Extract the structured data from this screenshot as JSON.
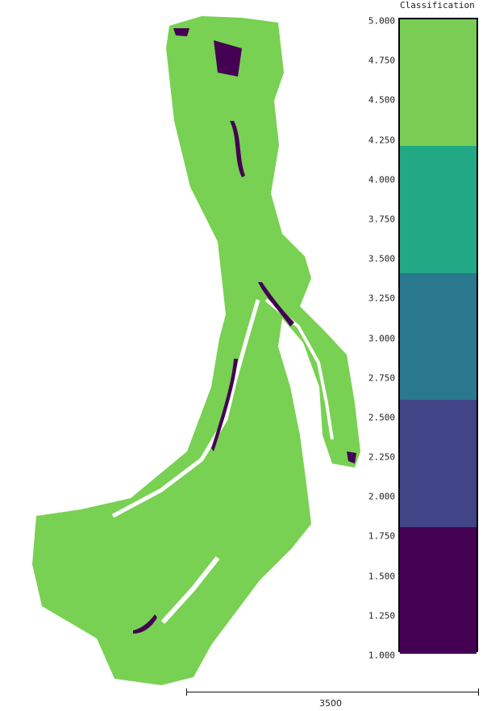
{
  "colorbar": {
    "title": "Classification",
    "range": [
      1.0,
      5.0
    ],
    "ticks": [
      "5.000",
      "4.750",
      "4.500",
      "4.250",
      "4.000",
      "3.750",
      "3.500",
      "3.250",
      "3.000",
      "2.750",
      "2.500",
      "2.250",
      "2.000",
      "1.750",
      "1.500",
      "1.250",
      "1.000"
    ],
    "classes": [
      {
        "from": 4.2,
        "to": 5.0,
        "color": "#7ace55"
      },
      {
        "from": 3.4,
        "to": 4.2,
        "color": "#22a884"
      },
      {
        "from": 2.6,
        "to": 3.4,
        "color": "#2a788e"
      },
      {
        "from": 1.8,
        "to": 2.6,
        "color": "#414487"
      },
      {
        "from": 1.0,
        "to": 1.8,
        "color": "#440154"
      }
    ]
  },
  "scale_bar": {
    "label": "3500"
  },
  "map": {
    "ground_color": "#78d152",
    "feature_color": "#440154"
  }
}
